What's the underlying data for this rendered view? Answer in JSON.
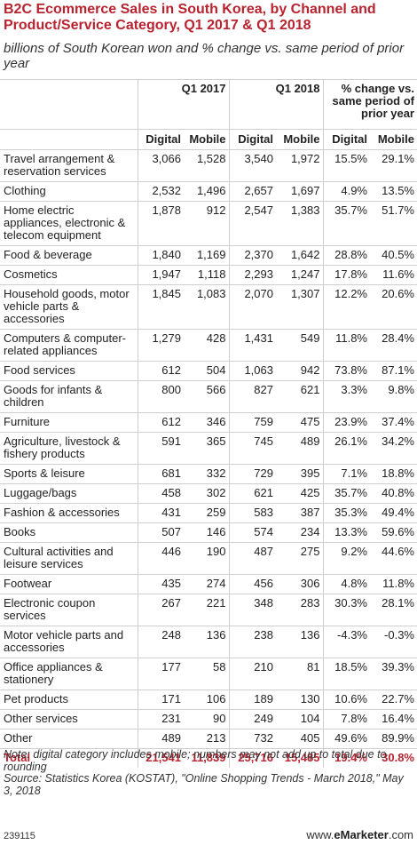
{
  "header": {
    "title": "B2C Ecommerce Sales in South Korea, by Channel and Product/Service Category, Q1 2017 & Q1 2018",
    "subtitle": "billions of South Korean won and % change vs. same period of prior year"
  },
  "table": {
    "groups": [
      "Q1 2017",
      "Q1 2018",
      "% change vs. same period of prior year"
    ],
    "columns": [
      "Digital",
      "Mobile",
      "Digital",
      "Mobile",
      "Digital",
      "Mobile"
    ],
    "rows": [
      [
        "Travel arrangement & reservation services",
        "3,066",
        "1,528",
        "3,540",
        "1,972",
        "15.5%",
        "29.1%"
      ],
      [
        "Clothing",
        "2,532",
        "1,496",
        "2,657",
        "1,697",
        "4.9%",
        "13.5%"
      ],
      [
        "Home electric appliances, electronic & telecom equipment",
        "1,878",
        "912",
        "2,547",
        "1,383",
        "35.7%",
        "51.7%"
      ],
      [
        "Food & beverage",
        "1,840",
        "1,169",
        "2,370",
        "1,642",
        "28.8%",
        "40.5%"
      ],
      [
        "Cosmetics",
        "1,947",
        "1,118",
        "2,293",
        "1,247",
        "17.8%",
        "11.6%"
      ],
      [
        "Household goods, motor vehicle parts & accessories",
        "1,845",
        "1,083",
        "2,070",
        "1,307",
        "12.2%",
        "20.6%"
      ],
      [
        "Computers & computer-related appliances",
        "1,279",
        "428",
        "1,431",
        "549",
        "11.8%",
        "28.4%"
      ],
      [
        "Food services",
        "612",
        "504",
        "1,063",
        "942",
        "73.8%",
        "87.1%"
      ],
      [
        "Goods for infants & children",
        "800",
        "566",
        "827",
        "621",
        "3.3%",
        "9.8%"
      ],
      [
        "Furniture",
        "612",
        "346",
        "759",
        "475",
        "23.9%",
        "37.4%"
      ],
      [
        "Agriculture, livestock & fishery products",
        "591",
        "365",
        "745",
        "489",
        "26.1%",
        "34.2%"
      ],
      [
        "Sports & leisure",
        "681",
        "332",
        "729",
        "395",
        "7.1%",
        "18.8%"
      ],
      [
        "Luggage/bags",
        "458",
        "302",
        "621",
        "425",
        "35.7%",
        "40.8%"
      ],
      [
        "Fashion & accessories",
        "431",
        "259",
        "583",
        "387",
        "35.3%",
        "49.4%"
      ],
      [
        "Books",
        "507",
        "146",
        "574",
        "234",
        "13.3%",
        "59.6%"
      ],
      [
        "Cultural activities and leisure services",
        "446",
        "190",
        "487",
        "275",
        "9.2%",
        "44.6%"
      ],
      [
        "Footwear",
        "435",
        "274",
        "456",
        "306",
        "4.8%",
        "11.8%"
      ],
      [
        "Electronic coupon services",
        "267",
        "221",
        "348",
        "283",
        "30.3%",
        "28.1%"
      ],
      [
        "Motor vehicle parts and accessories",
        "248",
        "136",
        "238",
        "136",
        "-4.3%",
        "-0.3%"
      ],
      [
        "Office appliances & stationery",
        "177",
        "58",
        "210",
        "81",
        "18.5%",
        "39.3%"
      ],
      [
        "Pet products",
        "171",
        "106",
        "189",
        "130",
        "10.6%",
        "22.7%"
      ],
      [
        "Other services",
        "231",
        "90",
        "249",
        "104",
        "7.8%",
        "16.4%"
      ],
      [
        "Other",
        "489",
        "213",
        "732",
        "405",
        "49.6%",
        "89.9%"
      ]
    ],
    "total": [
      "Total",
      "21,541",
      "11,839",
      "25,716",
      "15,485",
      "19.4%",
      "30.8%"
    ]
  },
  "notes": [
    "Note: digital category includes mobile; numbers may not add up to total due to rounding",
    "Source: Statistics Korea (KOSTAT), \"Online Shopping Trends - March 2018,\" May 3, 2018"
  ],
  "footer": {
    "id": "239115",
    "prefix": "www.",
    "brand": "eMarketer",
    "suffix": ".com"
  }
}
